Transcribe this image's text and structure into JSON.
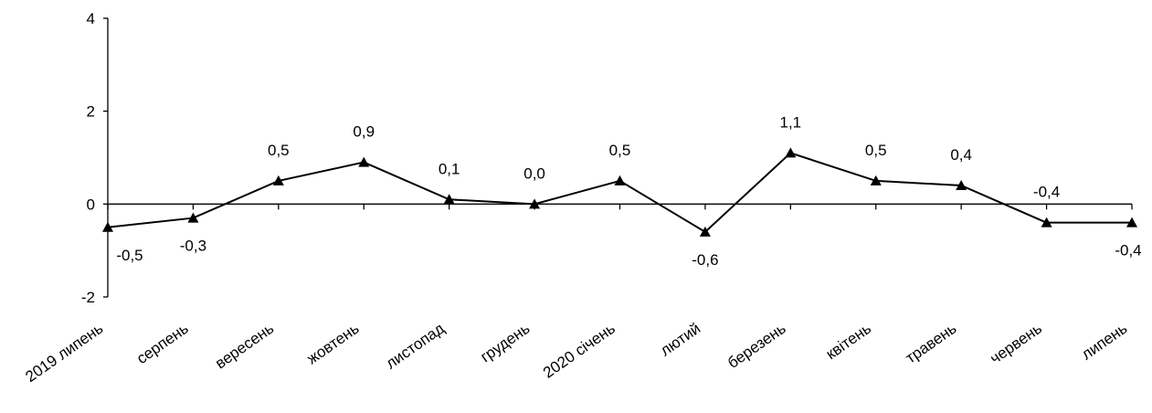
{
  "chart_data": {
    "type": "line",
    "title": "",
    "xlabel": "",
    "ylabel": "",
    "categories": [
      "2019 липень",
      "серпень",
      "вересень",
      "жовтень",
      "листопад",
      "грудень",
      "2020 січень",
      "лютий",
      "березень",
      "квітень",
      "травень",
      "червень",
      "липень"
    ],
    "series": [
      {
        "values": [
          -0.5,
          -0.3,
          0.5,
          0.9,
          0.1,
          0.0,
          0.5,
          -0.6,
          1.1,
          0.5,
          0.4,
          -0.4,
          -0.4
        ],
        "labels": [
          "-0,5",
          "-0,3",
          "0,5",
          "0,9",
          "0,1",
          "0,0",
          "0,5",
          "-0,6",
          "1,1",
          "0,5",
          "0,4",
          "-0,4",
          "-0,4"
        ],
        "label_positions": [
          "below",
          "below",
          "above",
          "above",
          "above",
          "above",
          "above",
          "below",
          "above",
          "above",
          "above",
          "above",
          "below"
        ],
        "marker": "triangle",
        "color": "#000000"
      }
    ],
    "yticks": [
      -2,
      0,
      2,
      4
    ],
    "ytick_labels": [
      "-2",
      "0",
      "2",
      "4"
    ],
    "ylim": [
      -2,
      4
    ],
    "grid": false,
    "legend": "none"
  }
}
